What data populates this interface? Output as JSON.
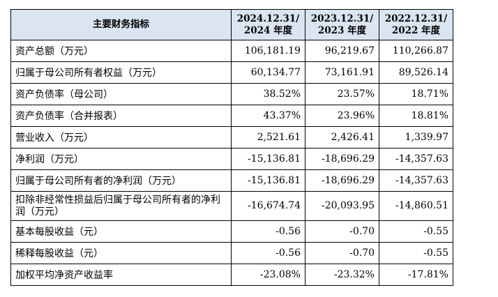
{
  "table": {
    "header": {
      "metric": "主要财务指标",
      "cols": [
        {
          "line1": "2024.12.31/",
          "line2": "2024 年度"
        },
        {
          "line1": "2023.12.31/",
          "line2": "2023 年度"
        },
        {
          "line1": "2022.12.31/",
          "line2": "2022 年度"
        }
      ]
    },
    "rows": [
      {
        "label": "资产总额（万元）",
        "values": [
          "106,181.19",
          "96,219.67",
          "110,266.87"
        ]
      },
      {
        "label": "归属于母公司所有者权益（万元）",
        "values": [
          "60,134.77",
          "73,161.91",
          "89,526.14"
        ]
      },
      {
        "label": "资产负债率（母公司）",
        "values": [
          "38.52%",
          "23.57%",
          "18.71%"
        ]
      },
      {
        "label": "资产负债率（合并报表）",
        "values": [
          "43.37%",
          "23.96%",
          "18.81%"
        ]
      },
      {
        "label": "营业收入（万元）",
        "values": [
          "2,521.61",
          "2,426.41",
          "1,339.97"
        ]
      },
      {
        "label": "净利润（万元）",
        "values": [
          "-15,136.81",
          "-18,696.29",
          "-14,357.63"
        ]
      },
      {
        "label": "归属于母公司所有者的净利润（万元）",
        "values": [
          "-15,136.81",
          "-18,696.29",
          "-14,357.63"
        ]
      },
      {
        "label": "扣除非经常性损益后归属于母公司所有者的净利润（万元）",
        "values": [
          "-16,674.74",
          "-20,093.95",
          "-14,860.51"
        ]
      },
      {
        "label": "基本每股收益（元）",
        "values": [
          "-0.56",
          "-0.70",
          "-0.55"
        ]
      },
      {
        "label": "稀释每股收益（元）",
        "values": [
          "-0.56",
          "-0.70",
          "-0.55"
        ]
      },
      {
        "label": "加权平均净资产收益率",
        "values": [
          "-23.08%",
          "-23.32%",
          "-17.81%"
        ]
      }
    ]
  }
}
